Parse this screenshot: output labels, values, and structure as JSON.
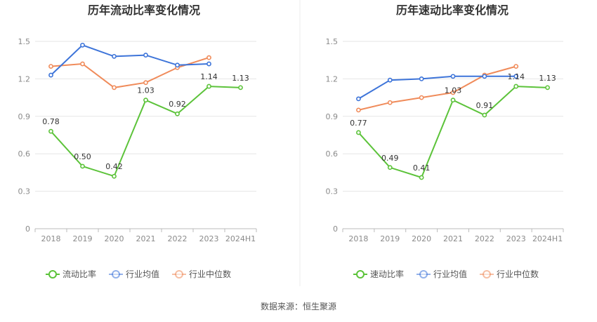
{
  "source": "数据来源：恒生聚源",
  "colors": {
    "company": "#5cc33a",
    "industry_avg": "#3d74d9",
    "industry_median": "#f08b5a",
    "grid": "#e6e6e6",
    "axis": "#bbbbbb"
  },
  "chart_data": [
    {
      "type": "line",
      "title": "历年流动比率变化情况",
      "categories": [
        "2018",
        "2019",
        "2020",
        "2021",
        "2022",
        "2023",
        "2024H1"
      ],
      "ylim": [
        0,
        1.5
      ],
      "yticks": [
        "0",
        "0.3",
        "0.6",
        "0.9",
        "1.2",
        "1.5"
      ],
      "grid": true,
      "legend_position": "bottom",
      "series": [
        {
          "name": "流动比率",
          "values": [
            0.78,
            0.5,
            0.42,
            1.03,
            0.92,
            1.14,
            1.13
          ],
          "labels": [
            "0.78",
            "0.50",
            "0.42",
            "1.03",
            "0.92",
            "1.14",
            "1.13"
          ]
        },
        {
          "name": "行业均值",
          "values": [
            1.23,
            1.47,
            1.38,
            1.39,
            1.31,
            1.32,
            null
          ]
        },
        {
          "name": "行业中位数",
          "values": [
            1.3,
            1.32,
            1.13,
            1.17,
            1.29,
            1.37,
            null
          ]
        }
      ]
    },
    {
      "type": "line",
      "title": "历年速动比率变化情况",
      "categories": [
        "2018",
        "2019",
        "2020",
        "2021",
        "2022",
        "2023",
        "2024H1"
      ],
      "ylim": [
        0,
        1.5
      ],
      "yticks": [
        "0",
        "0.3",
        "0.6",
        "0.9",
        "1.2",
        "1.5"
      ],
      "grid": true,
      "legend_position": "bottom",
      "series": [
        {
          "name": "速动比率",
          "values": [
            0.77,
            0.49,
            0.41,
            1.03,
            0.91,
            1.14,
            1.13
          ],
          "labels": [
            "0.77",
            "0.49",
            "0.41",
            "1.03",
            "0.91",
            "1.14",
            "1.13"
          ]
        },
        {
          "name": "行业均值",
          "values": [
            1.04,
            1.19,
            1.2,
            1.22,
            1.22,
            1.22,
            null
          ]
        },
        {
          "name": "行业中位数",
          "values": [
            0.95,
            1.01,
            1.05,
            1.09,
            1.23,
            1.3,
            null
          ]
        }
      ]
    }
  ]
}
